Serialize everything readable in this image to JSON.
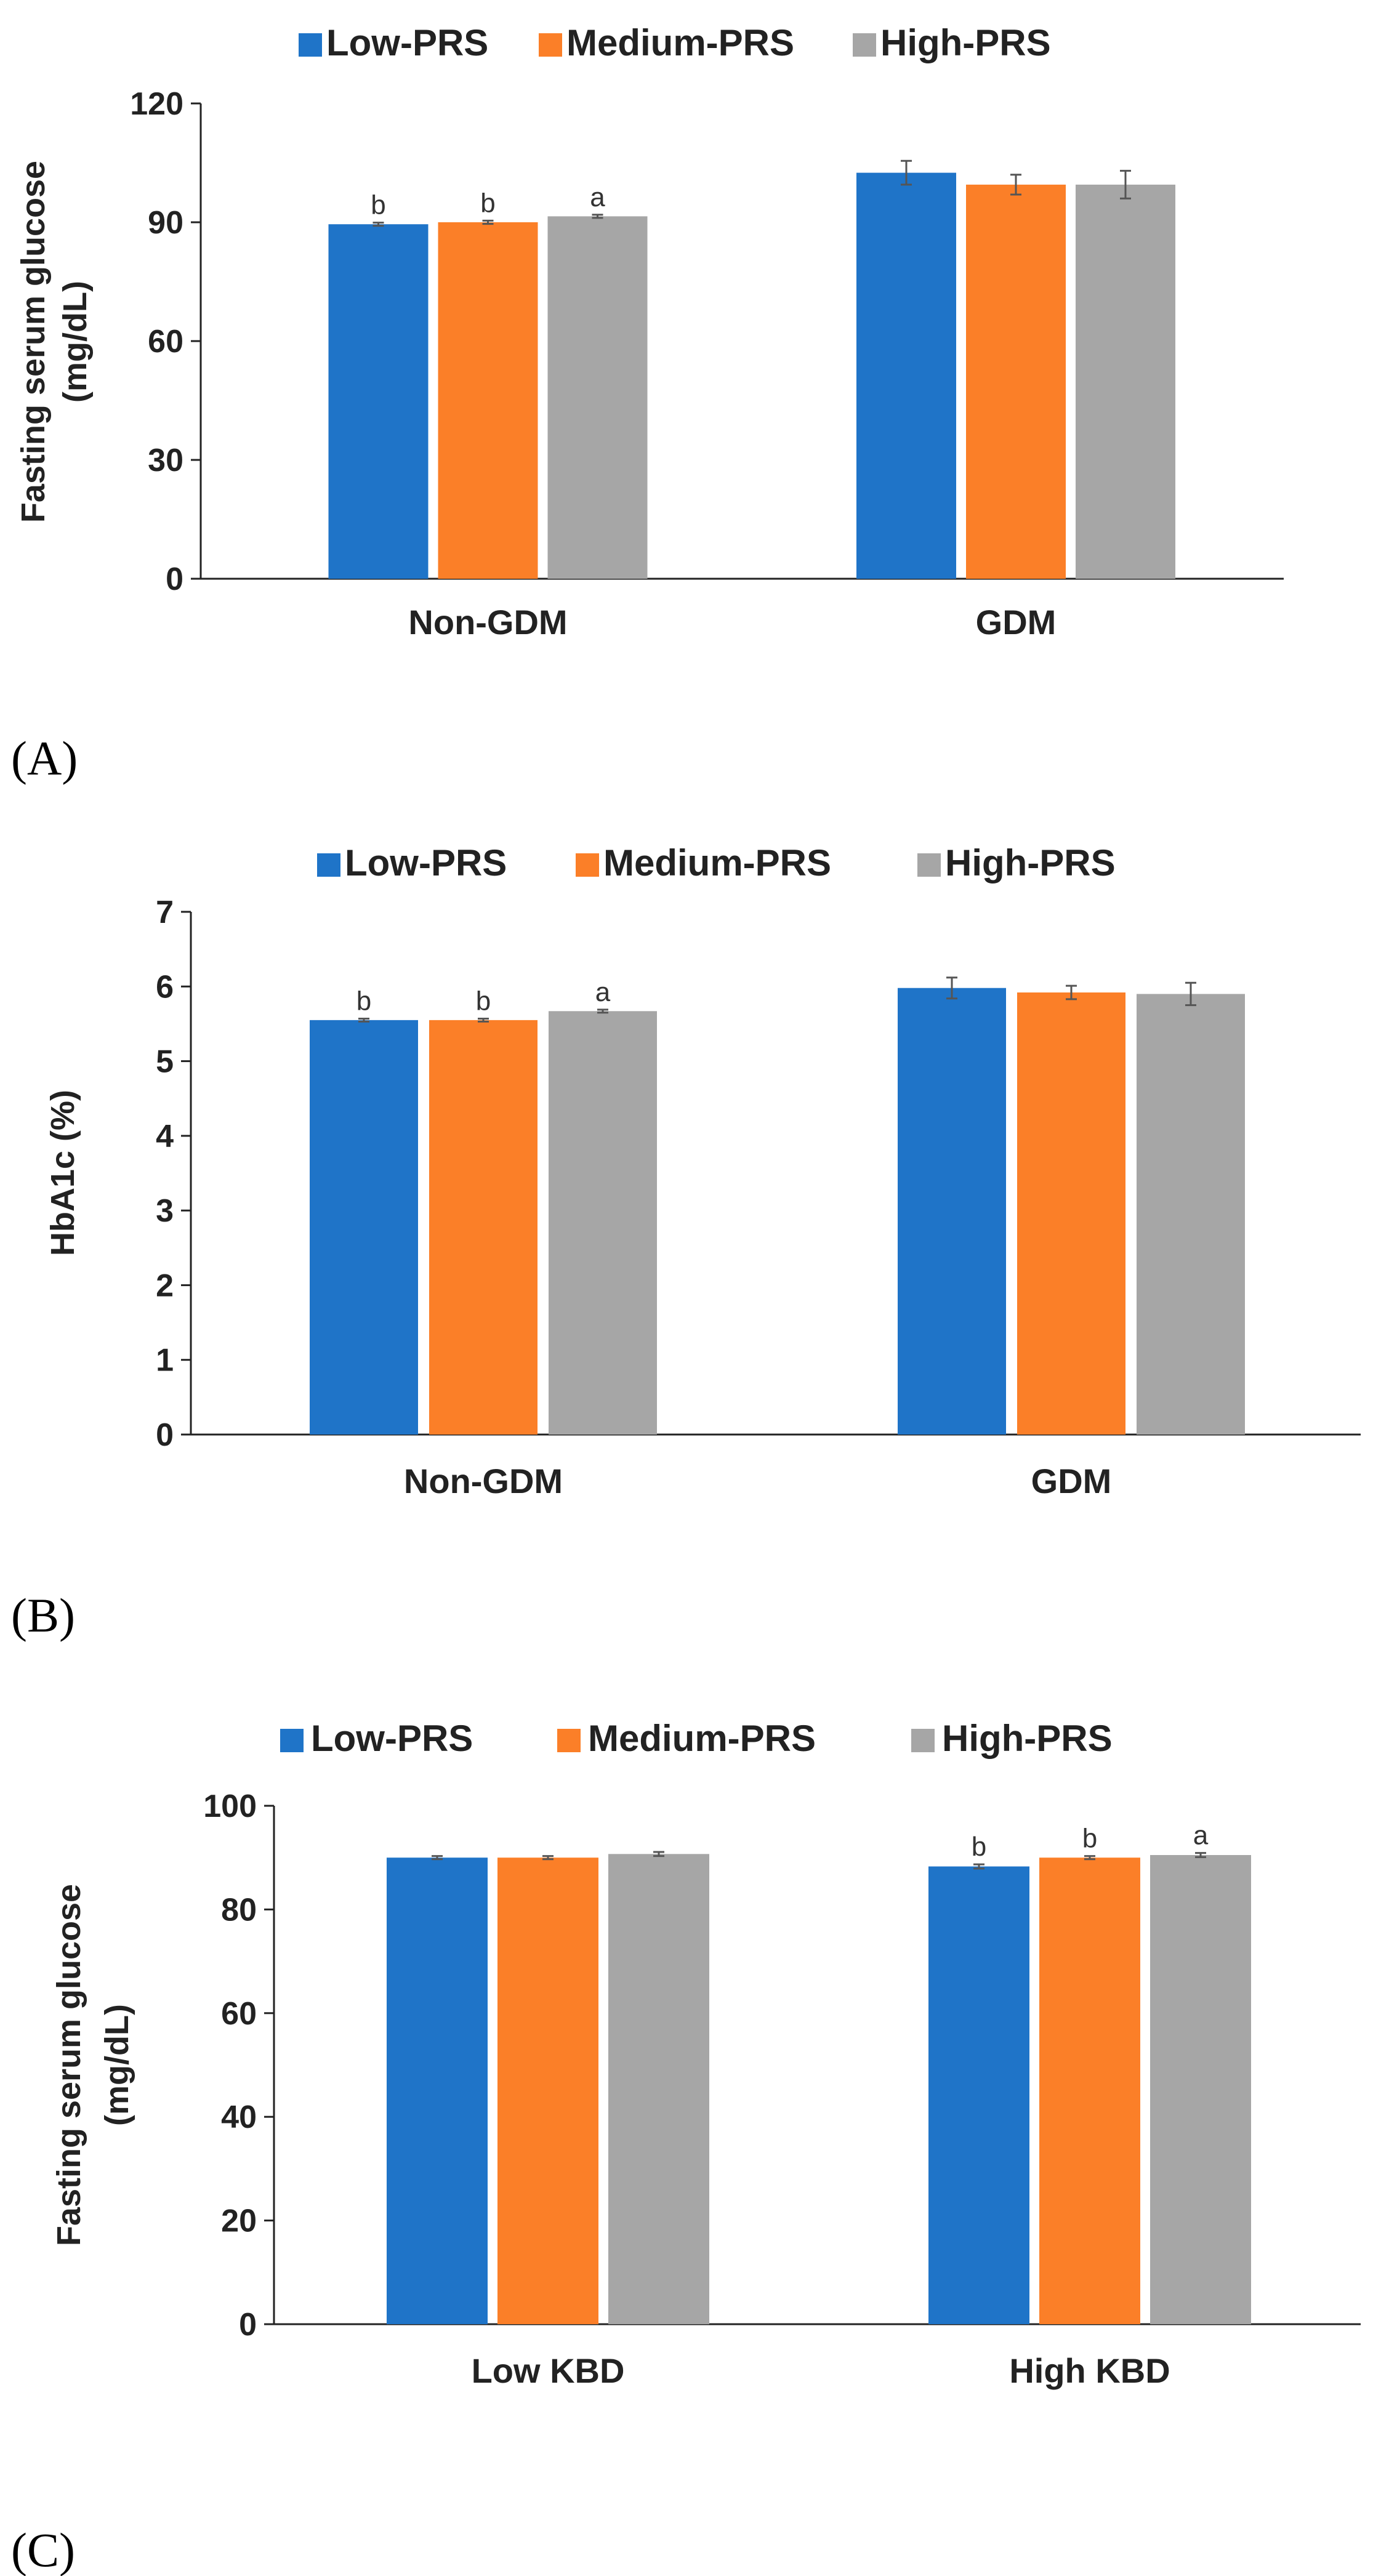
{
  "colors": {
    "low": "#1F74C8",
    "medium": "#FB7F28",
    "high": "#A6A6A6",
    "axis": "#222222",
    "errorbar": "#555555"
  },
  "chart_data": [
    {
      "panel": "(A)",
      "type": "bar",
      "ylabel_lines": [
        "Fasting serum glucose",
        "(mg/dL)"
      ],
      "ylim": [
        0,
        120
      ],
      "yticks": [
        0,
        30,
        60,
        90,
        120
      ],
      "categories": [
        "Non-GDM",
        "GDM"
      ],
      "legend": [
        "Low-PRS",
        "Medium-PRS",
        "High-PRS"
      ],
      "series": [
        {
          "name": "Low-PRS",
          "values": [
            89.5,
            102.5
          ],
          "errors": [
            0.4,
            3.0
          ],
          "labels": [
            "b",
            ""
          ]
        },
        {
          "name": "Medium-PRS",
          "values": [
            90.0,
            99.5
          ],
          "errors": [
            0.4,
            2.5
          ],
          "labels": [
            "b",
            ""
          ]
        },
        {
          "name": "High-PRS",
          "values": [
            91.5,
            99.5
          ],
          "errors": [
            0.4,
            3.5
          ],
          "labels": [
            "a",
            ""
          ]
        }
      ]
    },
    {
      "panel": "(B)",
      "type": "bar",
      "ylabel_lines": [
        "HbA1c (%)"
      ],
      "ylim": [
        0,
        7
      ],
      "yticks": [
        0,
        1,
        2,
        3,
        4,
        5,
        6,
        7
      ],
      "categories": [
        "Non-GDM",
        "GDM"
      ],
      "legend": [
        "Low-PRS",
        "Medium-PRS",
        "High-PRS"
      ],
      "series": [
        {
          "name": "Low-PRS",
          "values": [
            5.55,
            5.98
          ],
          "errors": [
            0.02,
            0.14
          ],
          "labels": [
            "b",
            ""
          ]
        },
        {
          "name": "Medium-PRS",
          "values": [
            5.55,
            5.92
          ],
          "errors": [
            0.02,
            0.09
          ],
          "labels": [
            "b",
            ""
          ]
        },
        {
          "name": "High-PRS",
          "values": [
            5.67,
            5.9
          ],
          "errors": [
            0.02,
            0.15
          ],
          "labels": [
            "a",
            ""
          ]
        }
      ]
    },
    {
      "panel": "(C)",
      "type": "bar",
      "ylabel_lines": [
        "Fasting serum glucose",
        "(mg/dL)"
      ],
      "ylim": [
        0,
        100
      ],
      "yticks": [
        0,
        20,
        40,
        60,
        80,
        100
      ],
      "categories": [
        "Low KBD",
        "High KBD"
      ],
      "legend": [
        "Low-PRS",
        "Medium-PRS",
        "High-PRS"
      ],
      "series": [
        {
          "name": "Low-PRS",
          "values": [
            90.0,
            88.3
          ],
          "errors": [
            0.3,
            0.4
          ],
          "labels": [
            "",
            "b"
          ]
        },
        {
          "name": "Medium-PRS",
          "values": [
            90.0,
            90.0
          ],
          "errors": [
            0.3,
            0.3
          ],
          "labels": [
            "",
            "b"
          ]
        },
        {
          "name": "High-PRS",
          "values": [
            90.7,
            90.5
          ],
          "errors": [
            0.4,
            0.4
          ],
          "labels": [
            "",
            "a"
          ]
        }
      ]
    }
  ]
}
